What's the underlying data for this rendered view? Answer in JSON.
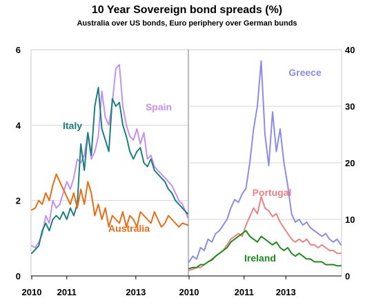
{
  "chart_data": [
    {
      "type": "line",
      "panel": "left",
      "title": "10 Year Sovereign bond spreads (%)",
      "subtitle": "Australia over US bonds, Euro periphery over German bunds",
      "xlabel": "",
      "ylabel": "",
      "x_ticks": [
        "2010",
        "2011",
        "2013"
      ],
      "x_tick_values": [
        2010.0,
        2011.0,
        2012.97
      ],
      "xlim": [
        2010.0,
        2014.45
      ],
      "y_ticks": [
        "0",
        "2",
        "4",
        "6"
      ],
      "ylim": [
        0,
        6
      ],
      "grid": "horizontal",
      "series": [
        {
          "name": "Spain",
          "color": "#c490f0",
          "x": [
            2010.0,
            2010.1,
            2010.2,
            2010.3,
            2010.4,
            2010.5,
            2010.6,
            2010.7,
            2010.8,
            2010.9,
            2011.0,
            2011.1,
            2011.2,
            2011.3,
            2011.4,
            2011.5,
            2011.6,
            2011.7,
            2011.8,
            2011.9,
            2012.0,
            2012.1,
            2012.2,
            2012.3,
            2012.4,
            2012.5,
            2012.6,
            2012.7,
            2012.8,
            2012.9,
            2013.0,
            2013.1,
            2013.2,
            2013.3,
            2013.4,
            2013.5,
            2013.6,
            2013.7,
            2013.8,
            2013.9,
            2014.0,
            2014.1,
            2014.2,
            2014.3,
            2014.45
          ],
          "y": [
            0.8,
            0.75,
            0.9,
            1.1,
            1.6,
            1.4,
            2.0,
            1.8,
            1.9,
            2.2,
            2.5,
            2.3,
            2.6,
            3.1,
            3.0,
            3.2,
            3.8,
            3.1,
            3.3,
            3.7,
            4.9,
            4.2,
            4.0,
            4.6,
            5.5,
            5.6,
            4.5,
            4.0,
            3.7,
            3.6,
            3.9,
            3.5,
            3.8,
            3.1,
            3.2,
            2.9,
            2.8,
            2.7,
            2.6,
            2.5,
            2.4,
            2.2,
            2.0,
            1.9,
            1.55
          ]
        },
        {
          "name": "Italy",
          "color": "#1a7f7f",
          "x": [
            2010.0,
            2010.1,
            2010.2,
            2010.3,
            2010.4,
            2010.5,
            2010.6,
            2010.7,
            2010.8,
            2010.9,
            2011.0,
            2011.1,
            2011.2,
            2011.3,
            2011.4,
            2011.5,
            2011.6,
            2011.7,
            2011.8,
            2011.9,
            2012.0,
            2012.1,
            2012.2,
            2012.3,
            2012.4,
            2012.5,
            2012.6,
            2012.7,
            2012.8,
            2012.9,
            2013.0,
            2013.1,
            2013.2,
            2013.3,
            2013.4,
            2013.5,
            2013.6,
            2013.7,
            2013.8,
            2013.9,
            2014.0,
            2014.1,
            2014.2,
            2014.3,
            2014.45
          ],
          "y": [
            0.6,
            0.7,
            0.8,
            1.2,
            1.4,
            1.2,
            1.5,
            1.6,
            1.5,
            1.7,
            1.5,
            1.8,
            1.6,
            1.9,
            3.5,
            2.8,
            3.8,
            3.2,
            4.5,
            5.0,
            3.9,
            3.6,
            3.3,
            4.7,
            4.5,
            4.6,
            4.0,
            3.7,
            3.3,
            3.1,
            3.3,
            3.4,
            3.0,
            2.9,
            3.1,
            2.8,
            2.7,
            2.6,
            2.5,
            2.3,
            2.2,
            2.0,
            1.9,
            1.8,
            1.65
          ]
        },
        {
          "name": "Australia",
          "color": "#ee6a10",
          "x": [
            2010.0,
            2010.1,
            2010.2,
            2010.3,
            2010.4,
            2010.5,
            2010.6,
            2010.7,
            2010.8,
            2010.9,
            2011.0,
            2011.1,
            2011.2,
            2011.3,
            2011.4,
            2011.5,
            2011.6,
            2011.7,
            2011.8,
            2011.9,
            2012.0,
            2012.1,
            2012.2,
            2012.3,
            2012.4,
            2012.5,
            2012.6,
            2012.7,
            2012.8,
            2012.9,
            2013.0,
            2013.1,
            2013.2,
            2013.3,
            2013.4,
            2013.5,
            2013.6,
            2013.7,
            2013.8,
            2013.9,
            2014.0,
            2014.1,
            2014.2,
            2014.3,
            2014.45
          ],
          "y": [
            1.75,
            1.8,
            2.0,
            1.9,
            2.2,
            2.0,
            2.4,
            2.7,
            2.5,
            2.3,
            2.1,
            1.9,
            2.2,
            1.8,
            2.3,
            1.9,
            2.5,
            2.2,
            1.6,
            1.9,
            1.5,
            1.8,
            1.3,
            1.6,
            1.5,
            1.4,
            1.7,
            1.3,
            1.6,
            1.5,
            1.3,
            1.7,
            1.6,
            1.5,
            1.4,
            1.7,
            1.5,
            1.3,
            1.4,
            1.6,
            1.5,
            1.4,
            1.3,
            1.4,
            1.35
          ]
        }
      ]
    },
    {
      "type": "line",
      "panel": "right",
      "xlabel": "",
      "ylabel": "",
      "x_ticks": [
        "2010",
        "2011",
        "2013"
      ],
      "x_tick_values": [
        2010.0,
        2011.45,
        2012.55
      ],
      "xlim": [
        2010.0,
        2014.0
      ],
      "y_ticks": [
        "0",
        "10",
        "20",
        "30",
        "40"
      ],
      "ylim": [
        0,
        40
      ],
      "y_axis": "right",
      "grid": "horizontal",
      "series": [
        {
          "name": "Greece",
          "color": "#8a8af0",
          "x": [
            2010.0,
            2010.1,
            2010.2,
            2010.3,
            2010.4,
            2010.5,
            2010.6,
            2010.7,
            2010.8,
            2010.9,
            2011.0,
            2011.1,
            2011.2,
            2011.3,
            2011.4,
            2011.5,
            2011.6,
            2011.7,
            2011.8,
            2011.9,
            2012.0,
            2012.1,
            2012.2,
            2012.3,
            2012.4,
            2012.5,
            2012.6,
            2012.7,
            2012.8,
            2012.9,
            2013.0,
            2013.1,
            2013.2,
            2013.3,
            2013.4,
            2013.5,
            2013.6,
            2013.7,
            2013.8,
            2013.9,
            2014.0
          ],
          "y": [
            2.5,
            3.5,
            3.0,
            5.0,
            4.5,
            6.5,
            6.0,
            7.5,
            8.0,
            9.0,
            10.0,
            12.0,
            13.5,
            13.0,
            14.5,
            15.5,
            20.0,
            26.0,
            30.0,
            38.0,
            25.0,
            19.5,
            29.0,
            22.0,
            26.0,
            20.0,
            16.0,
            11.0,
            9.5,
            10.0,
            9.0,
            9.5,
            8.5,
            8.0,
            7.5,
            7.0,
            7.5,
            6.5,
            6.0,
            6.5,
            5.5
          ]
        },
        {
          "name": "Portugal",
          "color": "#f08080",
          "x": [
            2010.0,
            2010.1,
            2010.2,
            2010.3,
            2010.4,
            2010.5,
            2010.6,
            2010.7,
            2010.8,
            2010.9,
            2011.0,
            2011.1,
            2011.2,
            2011.3,
            2011.4,
            2011.5,
            2011.6,
            2011.7,
            2011.8,
            2011.9,
            2012.0,
            2012.1,
            2012.2,
            2012.3,
            2012.4,
            2012.5,
            2012.6,
            2012.7,
            2012.8,
            2012.9,
            2013.0,
            2013.1,
            2013.2,
            2013.3,
            2013.4,
            2013.5,
            2013.6,
            2013.7,
            2013.8,
            2013.9,
            2014.0
          ],
          "y": [
            1.0,
            1.2,
            1.5,
            1.5,
            2.0,
            2.5,
            3.0,
            3.5,
            4.0,
            4.5,
            5.5,
            6.5,
            7.0,
            7.5,
            7.0,
            9.0,
            10.5,
            12.0,
            11.0,
            14.0,
            12.0,
            11.5,
            10.5,
            11.0,
            9.5,
            8.5,
            7.5,
            6.5,
            6.0,
            6.5,
            6.0,
            6.5,
            5.5,
            5.5,
            5.0,
            5.5,
            5.0,
            4.5,
            4.5,
            4.0,
            4.0
          ]
        },
        {
          "name": "Ireland",
          "color": "#1a8c1a",
          "x": [
            2010.0,
            2010.1,
            2010.2,
            2010.3,
            2010.4,
            2010.5,
            2010.6,
            2010.7,
            2010.8,
            2010.9,
            2011.0,
            2011.1,
            2011.2,
            2011.3,
            2011.4,
            2011.5,
            2011.6,
            2011.7,
            2011.8,
            2011.9,
            2012.0,
            2012.1,
            2012.2,
            2012.3,
            2012.4,
            2012.5,
            2012.6,
            2012.7,
            2012.8,
            2012.9,
            2013.0,
            2013.1,
            2013.2,
            2013.3,
            2013.4,
            2013.5,
            2013.6,
            2013.7,
            2013.8,
            2013.9,
            2014.0
          ],
          "y": [
            1.3,
            1.5,
            1.5,
            2.0,
            2.0,
            2.5,
            2.8,
            3.5,
            4.0,
            4.5,
            5.0,
            6.0,
            6.5,
            7.0,
            7.5,
            8.0,
            7.0,
            6.5,
            6.0,
            7.0,
            6.5,
            6.0,
            5.5,
            6.0,
            5.0,
            4.5,
            5.0,
            4.0,
            3.5,
            4.0,
            3.5,
            3.0,
            3.0,
            2.5,
            2.5,
            2.5,
            2.0,
            2.0,
            2.0,
            1.8,
            1.8
          ]
        }
      ]
    }
  ]
}
